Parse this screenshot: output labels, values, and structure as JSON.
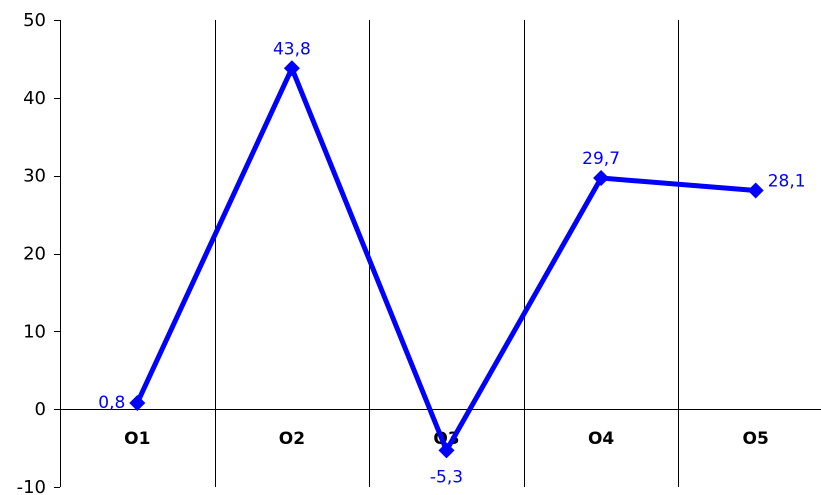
{
  "chart_data": {
    "type": "line",
    "categories": [
      "O1",
      "O2",
      "O3",
      "O4",
      "O5"
    ],
    "series": [
      {
        "values": [
          0.8,
          43.8,
          -5.3,
          29.7,
          28.1
        ],
        "color": "#0000FF"
      }
    ],
    "data_labels": [
      "0,8",
      "43,8",
      "-5,3",
      "29,7",
      "28,1"
    ],
    "y_ticks": [
      "-10",
      "0",
      "10",
      "20",
      "30",
      "40",
      "50"
    ],
    "ylim": [
      -10,
      50
    ],
    "title": "",
    "xlabel": "",
    "ylabel": "",
    "vertical_gridlines": true,
    "horizontal_gridlines": false,
    "marker": "diamond",
    "legend": "none"
  }
}
